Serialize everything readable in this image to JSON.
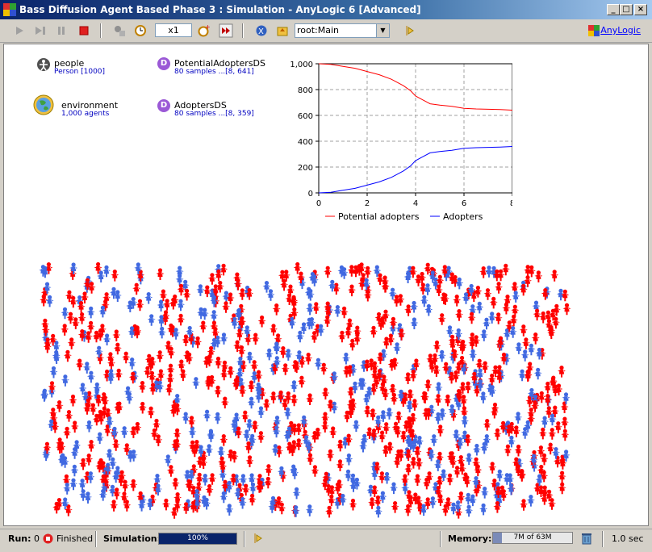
{
  "window": {
    "title": "Bass Diffusion Agent Based Phase 3 : Simulation - AnyLogic 6 [Advanced]",
    "minimize": "_",
    "maximize": "□",
    "close": "×"
  },
  "toolbar": {
    "speed": "x1",
    "view_select": "root:Main",
    "link": "AnyLogic",
    "icons": [
      "play-icon",
      "step-icon",
      "pause-icon",
      "stop-icon",
      "experiment-icon",
      "realtime-icon",
      "slower-icon",
      "faster-icon",
      "navigate-up-icon",
      "navigate-home-icon",
      "play-small-icon",
      "anylogic-logo-icon"
    ]
  },
  "objects": {
    "people": {
      "name": "people",
      "sub": "Person [1000]"
    },
    "environment": {
      "name": "environment",
      "sub": "1,000 agents"
    },
    "potential_ds": {
      "name": "PotentialAdoptersDS",
      "sub": "80 samples ...[8, 641]",
      "icon_letter": "D"
    },
    "adopters_ds": {
      "name": "AdoptersDS",
      "sub": "80 samples ...[8, 359]",
      "icon_letter": "D"
    }
  },
  "chart_data": {
    "type": "line",
    "xlim": [
      0,
      8
    ],
    "ylim": [
      0,
      1000
    ],
    "x_ticks": [
      "0",
      "2",
      "4",
      "6",
      "8"
    ],
    "y_ticks": [
      "0",
      "200",
      "400",
      "600",
      "800",
      "1,000"
    ],
    "grid": true,
    "legend_position": "bottom",
    "series": [
      {
        "name": "Potential adopters",
        "color": "#ff0000",
        "x": [
          0,
          0.5,
          1,
          1.5,
          2,
          2.5,
          3,
          3.5,
          3.8,
          4,
          4.3,
          4.6,
          5,
          5.5,
          6,
          6.5,
          7,
          7.5,
          8
        ],
        "y": [
          1000,
          995,
          980,
          965,
          940,
          915,
          880,
          830,
          790,
          750,
          720,
          690,
          680,
          670,
          655,
          650,
          648,
          645,
          641
        ]
      },
      {
        "name": "Adopters",
        "color": "#0000ff",
        "x": [
          0,
          0.5,
          1,
          1.5,
          2,
          2.5,
          3,
          3.5,
          3.8,
          4,
          4.3,
          4.6,
          5,
          5.5,
          6,
          6.5,
          7,
          7.5,
          8
        ],
        "y": [
          0,
          5,
          20,
          35,
          60,
          85,
          120,
          170,
          210,
          250,
          280,
          310,
          320,
          330,
          345,
          350,
          352,
          355,
          359
        ]
      }
    ]
  },
  "colors": {
    "potential": "#ff0000",
    "adopter": "#4169e1"
  },
  "status": {
    "run_label": "Run:",
    "run_value": "0",
    "state": "Finished",
    "simulation_label": "Simulation:",
    "progress": "100%",
    "memory_label": "Memory:",
    "memory_value": "7M of 63M",
    "memory_fraction": 0.11,
    "time": "1.0 sec"
  }
}
